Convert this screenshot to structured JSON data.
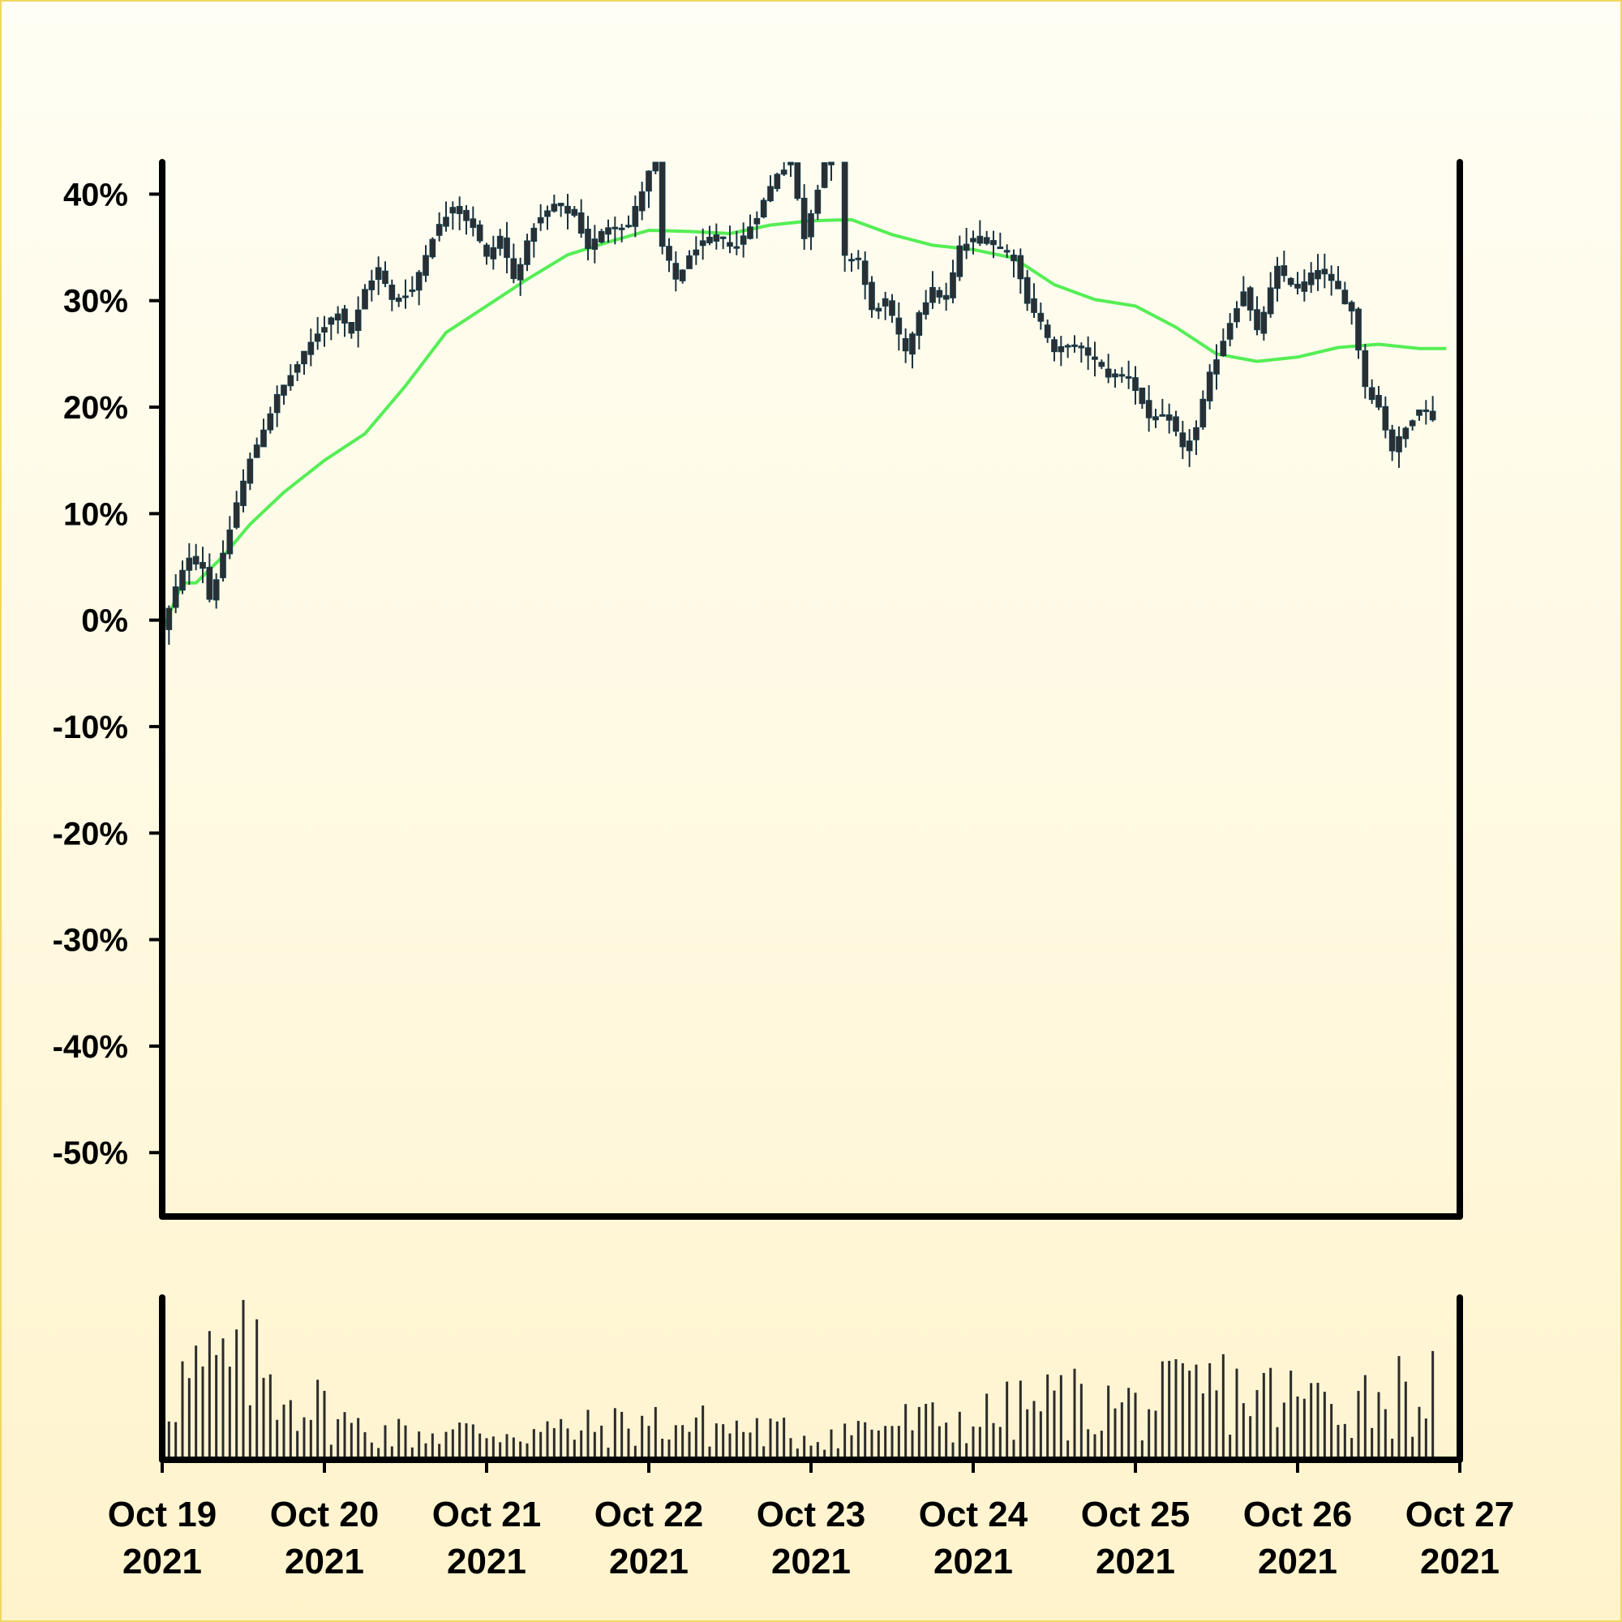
{
  "chart_data": [
    {
      "type": "candlestick",
      "title": "",
      "xlabel": "",
      "ylabel": "",
      "y_unit": "%",
      "ylim": [
        -56,
        43
      ],
      "xlim": [
        "2021-10-19",
        "2021-10-27"
      ],
      "grid": false,
      "y_ticks": [
        "40%",
        "30%",
        "20%",
        "10%",
        "0%",
        "-10%",
        "-20%",
        "-30%",
        "-40%",
        "-50%"
      ],
      "colors": {
        "candle": "#2b2f33",
        "candle_edge": "#123a4a",
        "moving_average": "#55ee55"
      },
      "series": [
        {
          "kind": "close_approx",
          "points": [
            [
              "2021-10-19 00:00",
              -1
            ],
            [
              "2021-10-19 02:00",
              3
            ],
            [
              "2021-10-19 04:00",
              6
            ],
            [
              "2021-10-19 06:00",
              5
            ],
            [
              "2021-10-19 07:00",
              2
            ],
            [
              "2021-10-19 09:00",
              6
            ],
            [
              "2021-10-19 11:00",
              11
            ],
            [
              "2021-10-19 13:00",
              15
            ],
            [
              "2021-10-19 15:00",
              18
            ],
            [
              "2021-10-19 17:00",
              21
            ],
            [
              "2021-10-19 20:00",
              24
            ],
            [
              "2021-10-19 23:00",
              27
            ],
            [
              "2021-10-20 02:00",
              29
            ],
            [
              "2021-10-20 04:00",
              27
            ],
            [
              "2021-10-20 06:00",
              31
            ],
            [
              "2021-10-20 08:00",
              33
            ],
            [
              "2021-10-20 10:00",
              30
            ],
            [
              "2021-10-20 13:00",
              31
            ],
            [
              "2021-10-20 16:00",
              36
            ],
            [
              "2021-10-20 19:00",
              39
            ],
            [
              "2021-10-20 22:00",
              37
            ],
            [
              "2021-10-21 00:00",
              34
            ],
            [
              "2021-10-21 02:00",
              36
            ],
            [
              "2021-10-21 04:00",
              32
            ],
            [
              "2021-10-21 07:00",
              37
            ],
            [
              "2021-10-21 10:00",
              39
            ],
            [
              "2021-10-21 13:00",
              38
            ],
            [
              "2021-10-21 15:00",
              35
            ],
            [
              "2021-10-21 18:00",
              37
            ],
            [
              "2021-10-21 21:00",
              37
            ],
            [
              "2021-10-22 00:00",
              42
            ],
            [
              "2021-10-22 01:00",
              44
            ],
            [
              "2021-10-22 02:00",
              35
            ],
            [
              "2021-10-22 04:00",
              32
            ],
            [
              "2021-10-22 07:00",
              35
            ],
            [
              "2021-10-22 10:00",
              36
            ],
            [
              "2021-10-22 13:00",
              35
            ],
            [
              "2021-10-22 16:00",
              38
            ],
            [
              "2021-10-22 19:00",
              42
            ],
            [
              "2021-10-22 21:00",
              43
            ],
            [
              "2021-10-22 23:00",
              36
            ],
            [
              "2021-10-23 02:00",
              43
            ],
            [
              "2021-10-23 04:00",
              44
            ],
            [
              "2021-10-23 05:00",
              34
            ],
            [
              "2021-10-23 07:00",
              34
            ],
            [
              "2021-10-23 09:00",
              29
            ],
            [
              "2021-10-23 11:00",
              30
            ],
            [
              "2021-10-23 14:00",
              25
            ],
            [
              "2021-10-23 16:00",
              29
            ],
            [
              "2021-10-23 18:00",
              31
            ],
            [
              "2021-10-23 20:00",
              30
            ],
            [
              "2021-10-23 22:00",
              35
            ],
            [
              "2021-10-24 01:00",
              36
            ],
            [
              "2021-10-24 04:00",
              35
            ],
            [
              "2021-10-24 06:00",
              34
            ],
            [
              "2021-10-24 08:00",
              30
            ],
            [
              "2021-10-24 10:00",
              28
            ],
            [
              "2021-10-24 12:00",
              25
            ],
            [
              "2021-10-24 14:00",
              26
            ],
            [
              "2021-10-24 17:00",
              25
            ],
            [
              "2021-10-24 20:00",
              23
            ],
            [
              "2021-10-24 23:00",
              23
            ],
            [
              "2021-10-25 02:00",
              19
            ],
            [
              "2021-10-25 05:00",
              19
            ],
            [
              "2021-10-25 07:00",
              16
            ],
            [
              "2021-10-25 09:00",
              18
            ],
            [
              "2021-10-25 11:00",
              23
            ],
            [
              "2021-10-25 14:00",
              28
            ],
            [
              "2021-10-25 16:00",
              31
            ],
            [
              "2021-10-25 18:00",
              27
            ],
            [
              "2021-10-25 21:00",
              33
            ],
            [
              "2021-10-26 00:00",
              31
            ],
            [
              "2021-10-26 03:00",
              33
            ],
            [
              "2021-10-26 06:00",
              31
            ],
            [
              "2021-10-26 08:00",
              29
            ],
            [
              "2021-10-26 10:00",
              22
            ],
            [
              "2021-10-26 12:00",
              20
            ],
            [
              "2021-10-26 14:00",
              16
            ],
            [
              "2021-10-26 16:00",
              18
            ],
            [
              "2021-10-26 18:00",
              20
            ],
            [
              "2021-10-26 20:00",
              19
            ]
          ]
        },
        {
          "kind": "moving_average",
          "points": [
            [
              "2021-10-19 00:00",
              -1
            ],
            [
              "2021-10-19 03:00",
              3.5
            ],
            [
              "2021-10-19 05:00",
              3.5
            ],
            [
              "2021-10-19 09:00",
              6
            ],
            [
              "2021-10-19 13:00",
              9
            ],
            [
              "2021-10-19 18:00",
              12
            ],
            [
              "2021-10-20 00:00",
              15
            ],
            [
              "2021-10-20 06:00",
              17.5
            ],
            [
              "2021-10-20 12:00",
              22
            ],
            [
              "2021-10-20 18:00",
              27
            ],
            [
              "2021-10-21 00:00",
              29.5
            ],
            [
              "2021-10-21 06:00",
              32
            ],
            [
              "2021-10-21 12:00",
              34.3
            ],
            [
              "2021-10-21 18:00",
              35.5
            ],
            [
              "2021-10-22 00:00",
              36.6
            ],
            [
              "2021-10-22 06:00",
              36.5
            ],
            [
              "2021-10-22 12:00",
              36.3
            ],
            [
              "2021-10-22 18:00",
              37.1
            ],
            [
              "2021-10-23 00:00",
              37.5
            ],
            [
              "2021-10-23 06:00",
              37.6
            ],
            [
              "2021-10-23 12:00",
              36.2
            ],
            [
              "2021-10-23 18:00",
              35.2
            ],
            [
              "2021-10-24 00:00",
              34.8
            ],
            [
              "2021-10-24 06:00",
              34
            ],
            [
              "2021-10-24 12:00",
              31.5
            ],
            [
              "2021-10-24 18:00",
              30.1
            ],
            [
              "2021-10-25 00:00",
              29.5
            ],
            [
              "2021-10-25 06:00",
              27.5
            ],
            [
              "2021-10-25 12:00",
              25
            ],
            [
              "2021-10-25 18:00",
              24.3
            ],
            [
              "2021-10-26 00:00",
              24.7
            ],
            [
              "2021-10-26 06:00",
              25.6
            ],
            [
              "2021-10-26 12:00",
              25.9
            ],
            [
              "2021-10-26 18:00",
              25.5
            ],
            [
              "2021-10-26 22:00",
              25.5
            ]
          ]
        }
      ]
    },
    {
      "type": "bar",
      "panel": "volume",
      "title": "",
      "xlabel": "",
      "ylabel": "",
      "x_ticks": [
        "Oct 19\n2021",
        "Oct 20\n2021",
        "Oct 21\n2021",
        "Oct 22\n2021",
        "Oct 23\n2021",
        "Oct 24\n2021",
        "Oct 25\n2021",
        "Oct 26\n2021",
        "Oct 27\n2021"
      ],
      "x_tick_lines": [
        [
          "Oct 19",
          "2021"
        ],
        [
          "Oct 20",
          "2021"
        ],
        [
          "Oct 21",
          "2021"
        ],
        [
          "Oct 22",
          "2021"
        ],
        [
          "Oct 23",
          "2021"
        ],
        [
          "Oct 24",
          "2021"
        ],
        [
          "Oct 25",
          "2021"
        ],
        [
          "Oct 26",
          "2021"
        ],
        [
          "Oct 27",
          "2021"
        ]
      ],
      "volume_profile": [
        [
          "2021-10-19 00:00",
          0.55
        ],
        [
          "2021-10-19 12:00",
          0.75
        ],
        [
          "2021-10-19 20:00",
          0.5
        ],
        [
          "2021-10-20 04:00",
          0.25
        ],
        [
          "2021-10-20 12:00",
          0.2
        ],
        [
          "2021-10-21 00:00",
          0.22
        ],
        [
          "2021-10-21 12:00",
          0.22
        ],
        [
          "2021-10-22 00:00",
          0.28
        ],
        [
          "2021-10-22 12:00",
          0.25
        ],
        [
          "2021-10-23 00:00",
          0.18
        ],
        [
          "2021-10-23 12:00",
          0.28
        ],
        [
          "2021-10-24 00:00",
          0.3
        ],
        [
          "2021-10-24 12:00",
          0.45
        ],
        [
          "2021-10-25 00:00",
          0.4
        ],
        [
          "2021-10-25 12:00",
          0.55
        ],
        [
          "2021-10-26 00:00",
          0.45
        ],
        [
          "2021-10-26 12:00",
          0.5
        ],
        [
          "2021-10-26 23:00",
          0.55
        ]
      ]
    }
  ]
}
